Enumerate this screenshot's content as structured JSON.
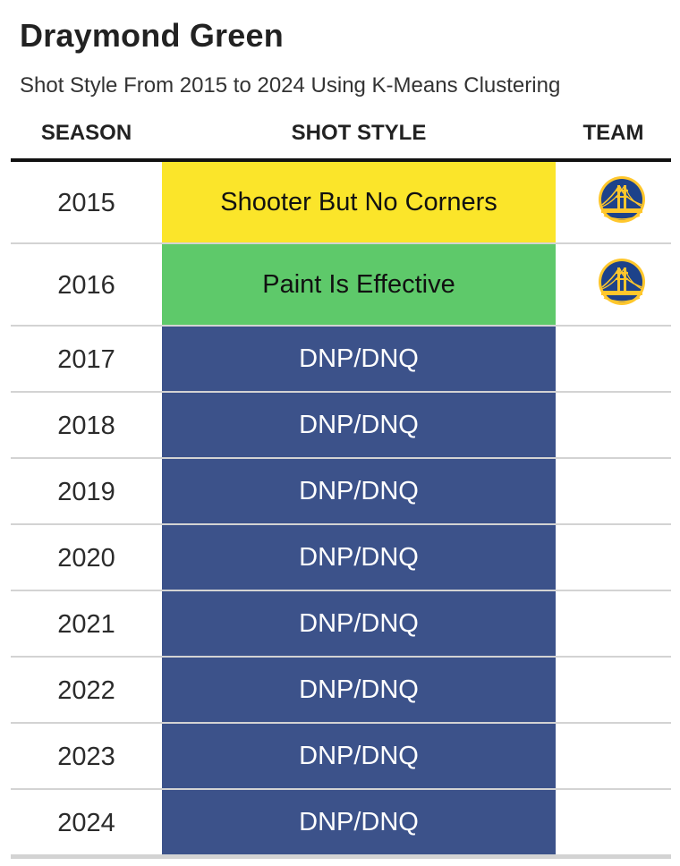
{
  "title": "Draymond Green",
  "subtitle": "Shot Style From 2015 to 2024 Using K-Means Clustering",
  "colors": {
    "shooter_but_no_corners": "#fbe52a",
    "paint_is_effective": "#5ec96a",
    "dnp_dnq": "#3c528a",
    "header_rule": "#111111",
    "row_separator": "#d3d3d3",
    "logo_navy": "#1d428a",
    "logo_gold": "#ffc72c"
  },
  "chart_data": {
    "type": "table",
    "columns": [
      "SEASON",
      "SHOT STYLE",
      "TEAM"
    ],
    "rows": [
      {
        "season": "2015",
        "shot_style": "Shooter But No Corners",
        "team_logo": "golden-state-warriors-logo"
      },
      {
        "season": "2016",
        "shot_style": "Paint Is Effective",
        "team_logo": "golden-state-warriors-logo"
      },
      {
        "season": "2017",
        "shot_style": "DNP/DNQ",
        "team_logo": ""
      },
      {
        "season": "2018",
        "shot_style": "DNP/DNQ",
        "team_logo": ""
      },
      {
        "season": "2019",
        "shot_style": "DNP/DNQ",
        "team_logo": ""
      },
      {
        "season": "2020",
        "shot_style": "DNP/DNQ",
        "team_logo": ""
      },
      {
        "season": "2021",
        "shot_style": "DNP/DNQ",
        "team_logo": ""
      },
      {
        "season": "2022",
        "shot_style": "DNP/DNQ",
        "team_logo": ""
      },
      {
        "season": "2023",
        "shot_style": "DNP/DNQ",
        "team_logo": ""
      },
      {
        "season": "2024",
        "shot_style": "DNP/DNQ",
        "team_logo": ""
      }
    ]
  }
}
